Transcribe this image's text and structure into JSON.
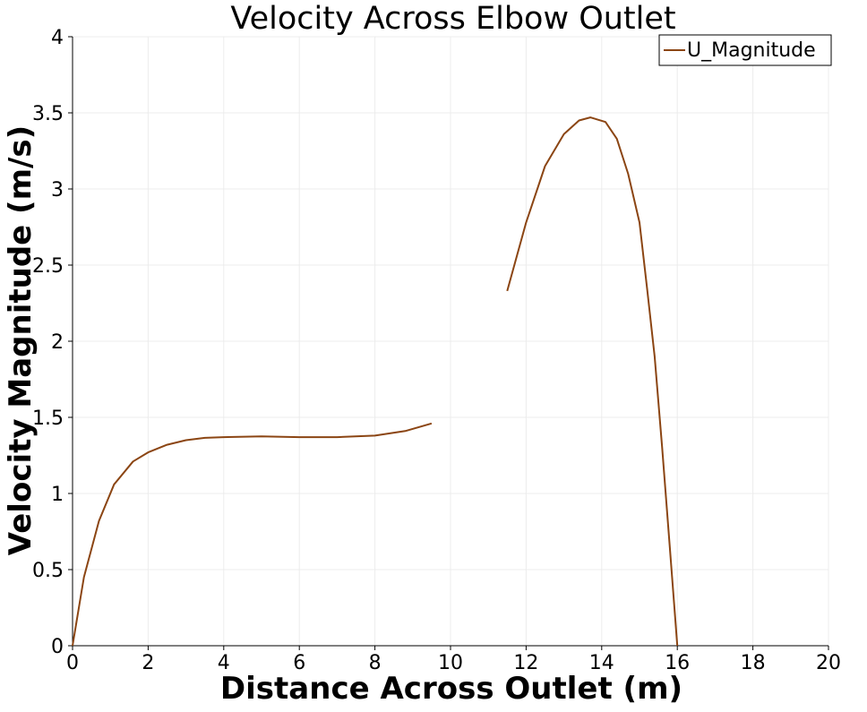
{
  "chart_data": {
    "type": "line",
    "title": "Velocity Across Elbow Outlet",
    "xlabel": "Distance Across Outlet (m)",
    "ylabel": "Velocity Magnitude (m/s)",
    "xlim": [
      0,
      20
    ],
    "ylim": [
      0,
      4
    ],
    "xticks": [
      0,
      2,
      4,
      6,
      8,
      10,
      12,
      14,
      16,
      18,
      20
    ],
    "yticks": [
      0,
      0.5,
      1,
      1.5,
      2,
      2.5,
      3,
      3.5,
      4
    ],
    "xtick_labels": [
      "0",
      "2",
      "4",
      "6",
      "8",
      "10",
      "12",
      "14",
      "16",
      "18",
      "20"
    ],
    "ytick_labels": [
      "0",
      "0.5",
      "1",
      "1.5",
      "2",
      "2.5",
      "3",
      "3.5",
      "4"
    ],
    "grid": true,
    "legend": {
      "position": "top-right",
      "entries": [
        "U_Magnitude"
      ]
    },
    "series": [
      {
        "name": "U_Magnitude",
        "color": "#8b4513",
        "segments": [
          [
            [
              0,
              0
            ],
            [
              0.3,
              0.45
            ],
            [
              0.7,
              0.82
            ],
            [
              1.1,
              1.06
            ],
            [
              1.6,
              1.21
            ],
            [
              2.0,
              1.27
            ],
            [
              2.5,
              1.32
            ],
            [
              3.0,
              1.35
            ],
            [
              3.5,
              1.365
            ],
            [
              4.0,
              1.37
            ],
            [
              5.0,
              1.375
            ],
            [
              6.0,
              1.37
            ],
            [
              7.0,
              1.37
            ],
            [
              8.0,
              1.38
            ],
            [
              8.8,
              1.41
            ],
            [
              9.5,
              1.46
            ]
          ],
          [
            [
              11.5,
              2.33
            ],
            [
              12.0,
              2.78
            ],
            [
              12.5,
              3.15
            ],
            [
              13.0,
              3.36
            ],
            [
              13.4,
              3.45
            ],
            [
              13.7,
              3.47
            ],
            [
              14.1,
              3.44
            ],
            [
              14.4,
              3.33
            ],
            [
              14.7,
              3.1
            ],
            [
              15.0,
              2.78
            ],
            [
              15.2,
              2.35
            ],
            [
              15.4,
              1.9
            ],
            [
              15.6,
              1.3
            ],
            [
              15.8,
              0.65
            ],
            [
              16.0,
              0.0
            ]
          ]
        ]
      }
    ]
  }
}
